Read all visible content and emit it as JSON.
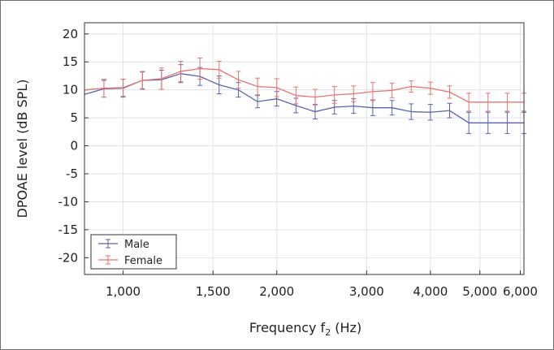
{
  "chart_data": {
    "type": "line",
    "title": "",
    "xlabel": "Frequency f",
    "xlabel_sub": "2",
    "xlabel_unit": " (Hz)",
    "ylabel": "DPOAE level (dB SPL)",
    "xscale": "log",
    "xlim": [
      840,
      6100
    ],
    "ylim": [
      -23,
      22
    ],
    "x_ticks": [
      1000,
      1500,
      2000,
      3000,
      4000,
      5000,
      6000
    ],
    "x_tick_labels": [
      "1,000",
      "1,500",
      "2,000",
      "3,000",
      "4,000",
      "5,000",
      "6,000"
    ],
    "y_ticks": [
      20,
      15,
      10,
      5,
      0,
      -5,
      -10,
      -15,
      -20
    ],
    "y_tick_labels": [
      "20",
      "15",
      "10",
      "5",
      "0",
      "-5",
      "-10",
      "-15",
      "-20"
    ],
    "grid": true,
    "legend_position": "bottom-left",
    "x": [
      841,
      917,
      1000,
      1091,
      1189,
      1297,
      1414,
      1542,
      1682,
      1834,
      2000,
      2181,
      2378,
      2594,
      2828,
      3084,
      3364,
      3668,
      4000,
      4362,
      4757,
      5187,
      5657,
      6100
    ],
    "series": [
      {
        "name": "Male",
        "color": "#5a62b0",
        "errorbar_from_index": 1,
        "values": [
          9.2,
          10.2,
          10.3,
          11.7,
          11.8,
          12.9,
          12.4,
          10.9,
          10.0,
          7.9,
          8.4,
          7.2,
          6.1,
          6.9,
          7.1,
          6.8,
          6.8,
          6.1,
          6.0,
          6.3,
          4.1,
          4.1,
          4.1,
          4.1
        ],
        "errors": [
          1.4,
          1.5,
          1.6,
          1.5,
          1.7,
          1.6,
          1.6,
          1.6,
          1.3,
          1.1,
          1.3,
          1.3,
          1.3,
          1.2,
          1.3,
          1.4,
          1.3,
          1.4,
          1.4,
          1.3,
          1.9,
          1.9,
          1.9,
          1.9
        ]
      },
      {
        "name": "Female",
        "color": "#e8736e",
        "errorbar_from_index": 1,
        "values": [
          10.0,
          10.3,
          10.4,
          11.7,
          12.0,
          13.3,
          13.8,
          13.6,
          11.8,
          10.6,
          10.4,
          9.0,
          8.7,
          9.1,
          9.3,
          9.7,
          9.9,
          10.6,
          10.3,
          9.6,
          7.8,
          7.8,
          7.8,
          7.8
        ],
        "errors": [
          1.4,
          1.6,
          1.5,
          1.6,
          1.9,
          1.8,
          1.9,
          1.5,
          1.5,
          1.5,
          1.6,
          1.5,
          1.4,
          1.5,
          1.4,
          1.6,
          1.3,
          1.0,
          1.1,
          1.1,
          1.6,
          1.6,
          1.6,
          1.6
        ]
      }
    ]
  }
}
